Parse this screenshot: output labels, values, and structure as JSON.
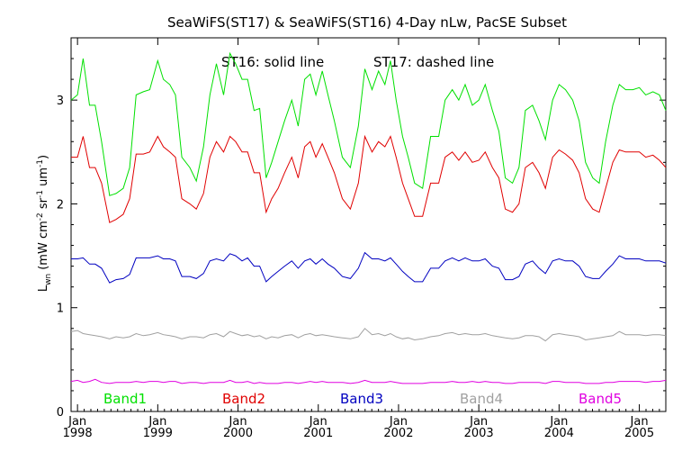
{
  "chart_data": {
    "type": "line",
    "title": "SeaWiFS(ST17) & SeaWiFS(ST16) 4-Day nLw, PacSE Subset",
    "annotation_solid": "ST16: solid line",
    "annotation_dashed": "ST17: dashed line",
    "ylabel": {
      "main": "L",
      "sub": "wn",
      "units_prefix": "(mW cm",
      "exp1": "-2",
      "units_mid1": " sr",
      "exp2": "-1",
      "units_mid2": " um",
      "exp3": "-1",
      "units_suffix": ")"
    },
    "ylim": [
      0,
      3.6
    ],
    "yticks": [
      0,
      1,
      2,
      3
    ],
    "xlim": [
      1997.92,
      2005.33
    ],
    "xticks": [
      {
        "value": 1998,
        "month": "Jan",
        "year": "1998"
      },
      {
        "value": 1999,
        "month": "Jan",
        "year": "1999"
      },
      {
        "value": 2000,
        "month": "Jan",
        "year": "2000"
      },
      {
        "value": 2001,
        "month": "Jan",
        "year": "2001"
      },
      {
        "value": 2002,
        "month": "Jan",
        "year": "2002"
      },
      {
        "value": 2003,
        "month": "Jan",
        "year": "2003"
      },
      {
        "value": 2004,
        "month": "Jan",
        "year": "2004"
      },
      {
        "value": 2005,
        "month": "Jan",
        "year": "2005"
      }
    ],
    "legend_placement": "bottom inside plot",
    "grid": false,
    "series": [
      {
        "name": "Band1",
        "color": "#00e000",
        "x": [
          1997.92,
          1998.0,
          1998.07,
          1998.15,
          1998.22,
          1998.3,
          1998.4,
          1998.48,
          1998.57,
          1998.65,
          1998.73,
          1998.82,
          1998.9,
          1999.0,
          1999.07,
          1999.15,
          1999.22,
          1999.3,
          1999.4,
          1999.48,
          1999.57,
          1999.65,
          1999.73,
          1999.82,
          1999.9,
          1999.97,
          2000.05,
          2000.12,
          2000.2,
          2000.27,
          2000.35,
          2000.42,
          2000.5,
          2000.58,
          2000.67,
          2000.75,
          2000.83,
          2000.9,
          2000.97,
          2001.05,
          2001.12,
          2001.2,
          2001.3,
          2001.4,
          2001.5,
          2001.58,
          2001.67,
          2001.75,
          2001.83,
          2001.9,
          2001.97,
          2002.05,
          2002.12,
          2002.2,
          2002.3,
          2002.4,
          2002.5,
          2002.58,
          2002.67,
          2002.75,
          2002.83,
          2002.92,
          2003.0,
          2003.08,
          2003.17,
          2003.25,
          2003.33,
          2003.42,
          2003.5,
          2003.58,
          2003.67,
          2003.75,
          2003.83,
          2003.92,
          2004.0,
          2004.08,
          2004.17,
          2004.25,
          2004.33,
          2004.42,
          2004.5,
          2004.58,
          2004.67,
          2004.75,
          2004.83,
          2004.92,
          2005.0,
          2005.08,
          2005.17,
          2005.25,
          2005.33
        ],
        "values": [
          3.0,
          3.05,
          3.4,
          2.95,
          2.95,
          2.6,
          2.08,
          2.1,
          2.15,
          2.35,
          3.05,
          3.08,
          3.1,
          3.38,
          3.2,
          3.15,
          3.05,
          2.45,
          2.35,
          2.22,
          2.55,
          3.05,
          3.35,
          3.05,
          3.45,
          3.35,
          3.2,
          3.2,
          2.9,
          2.92,
          2.25,
          2.4,
          2.6,
          2.8,
          3.0,
          2.75,
          3.2,
          3.25,
          3.05,
          3.28,
          3.05,
          2.8,
          2.45,
          2.35,
          2.75,
          3.3,
          3.1,
          3.28,
          3.15,
          3.38,
          3.0,
          2.65,
          2.45,
          2.2,
          2.15,
          2.65,
          2.65,
          3.0,
          3.1,
          3.0,
          3.15,
          2.95,
          3.0,
          3.15,
          2.9,
          2.7,
          2.25,
          2.2,
          2.35,
          2.9,
          2.95,
          2.8,
          2.62,
          3.0,
          3.15,
          3.1,
          3.0,
          2.8,
          2.4,
          2.25,
          2.2,
          2.6,
          2.95,
          3.15,
          3.1,
          3.1,
          3.12,
          3.05,
          3.08,
          3.05,
          2.9
        ]
      },
      {
        "name": "Band2",
        "color": "#e00000",
        "x": [
          1997.92,
          1998.0,
          1998.07,
          1998.15,
          1998.22,
          1998.3,
          1998.4,
          1998.48,
          1998.57,
          1998.65,
          1998.73,
          1998.82,
          1998.9,
          1999.0,
          1999.07,
          1999.15,
          1999.22,
          1999.3,
          1999.4,
          1999.48,
          1999.57,
          1999.65,
          1999.73,
          1999.82,
          1999.9,
          1999.97,
          2000.05,
          2000.12,
          2000.2,
          2000.27,
          2000.35,
          2000.42,
          2000.5,
          2000.58,
          2000.67,
          2000.75,
          2000.83,
          2000.9,
          2000.97,
          2001.05,
          2001.12,
          2001.2,
          2001.3,
          2001.4,
          2001.5,
          2001.58,
          2001.67,
          2001.75,
          2001.83,
          2001.9,
          2001.97,
          2002.05,
          2002.12,
          2002.2,
          2002.3,
          2002.4,
          2002.5,
          2002.58,
          2002.67,
          2002.75,
          2002.83,
          2002.92,
          2003.0,
          2003.08,
          2003.17,
          2003.25,
          2003.33,
          2003.42,
          2003.5,
          2003.58,
          2003.67,
          2003.75,
          2003.83,
          2003.92,
          2004.0,
          2004.08,
          2004.17,
          2004.25,
          2004.33,
          2004.42,
          2004.5,
          2004.58,
          2004.67,
          2004.75,
          2004.83,
          2004.92,
          2005.0,
          2005.08,
          2005.17,
          2005.25,
          2005.33
        ],
        "values": [
          2.45,
          2.45,
          2.65,
          2.35,
          2.35,
          2.2,
          1.82,
          1.85,
          1.9,
          2.05,
          2.48,
          2.48,
          2.5,
          2.65,
          2.55,
          2.5,
          2.45,
          2.05,
          2.0,
          1.95,
          2.1,
          2.45,
          2.6,
          2.5,
          2.65,
          2.6,
          2.5,
          2.5,
          2.3,
          2.3,
          1.92,
          2.05,
          2.15,
          2.3,
          2.45,
          2.25,
          2.55,
          2.6,
          2.45,
          2.58,
          2.45,
          2.3,
          2.05,
          1.95,
          2.2,
          2.65,
          2.5,
          2.6,
          2.55,
          2.65,
          2.45,
          2.2,
          2.05,
          1.88,
          1.88,
          2.2,
          2.2,
          2.45,
          2.5,
          2.42,
          2.5,
          2.4,
          2.42,
          2.5,
          2.35,
          2.25,
          1.95,
          1.92,
          2.0,
          2.35,
          2.4,
          2.3,
          2.15,
          2.45,
          2.52,
          2.48,
          2.42,
          2.3,
          2.05,
          1.95,
          1.92,
          2.15,
          2.4,
          2.52,
          2.5,
          2.5,
          2.5,
          2.45,
          2.47,
          2.42,
          2.35
        ]
      },
      {
        "name": "Band3",
        "color": "#0000c0",
        "x": [
          1997.92,
          1998.0,
          1998.07,
          1998.15,
          1998.22,
          1998.3,
          1998.4,
          1998.48,
          1998.57,
          1998.65,
          1998.73,
          1998.82,
          1998.9,
          1999.0,
          1999.07,
          1999.15,
          1999.22,
          1999.3,
          1999.4,
          1999.48,
          1999.57,
          1999.65,
          1999.73,
          1999.82,
          1999.9,
          1999.97,
          2000.05,
          2000.12,
          2000.2,
          2000.27,
          2000.35,
          2000.42,
          2000.5,
          2000.58,
          2000.67,
          2000.75,
          2000.83,
          2000.9,
          2000.97,
          2001.05,
          2001.12,
          2001.2,
          2001.3,
          2001.4,
          2001.5,
          2001.58,
          2001.67,
          2001.75,
          2001.83,
          2001.9,
          2001.97,
          2002.05,
          2002.12,
          2002.2,
          2002.3,
          2002.4,
          2002.5,
          2002.58,
          2002.67,
          2002.75,
          2002.83,
          2002.92,
          2003.0,
          2003.08,
          2003.17,
          2003.25,
          2003.33,
          2003.42,
          2003.5,
          2003.58,
          2003.67,
          2003.75,
          2003.83,
          2003.92,
          2004.0,
          2004.08,
          2004.17,
          2004.25,
          2004.33,
          2004.42,
          2004.5,
          2004.58,
          2004.67,
          2004.75,
          2004.83,
          2004.92,
          2005.0,
          2005.08,
          2005.17,
          2005.25,
          2005.33
        ],
        "values": [
          1.47,
          1.47,
          1.48,
          1.42,
          1.42,
          1.38,
          1.24,
          1.27,
          1.28,
          1.32,
          1.48,
          1.48,
          1.48,
          1.5,
          1.47,
          1.47,
          1.45,
          1.3,
          1.3,
          1.28,
          1.33,
          1.45,
          1.47,
          1.45,
          1.52,
          1.5,
          1.45,
          1.48,
          1.4,
          1.4,
          1.25,
          1.3,
          1.35,
          1.4,
          1.45,
          1.38,
          1.45,
          1.47,
          1.42,
          1.47,
          1.42,
          1.38,
          1.3,
          1.28,
          1.38,
          1.53,
          1.47,
          1.47,
          1.45,
          1.48,
          1.42,
          1.35,
          1.3,
          1.25,
          1.25,
          1.38,
          1.38,
          1.45,
          1.48,
          1.45,
          1.48,
          1.45,
          1.45,
          1.47,
          1.4,
          1.38,
          1.27,
          1.27,
          1.3,
          1.42,
          1.45,
          1.38,
          1.33,
          1.45,
          1.47,
          1.45,
          1.45,
          1.4,
          1.3,
          1.28,
          1.28,
          1.35,
          1.42,
          1.5,
          1.47,
          1.47,
          1.47,
          1.45,
          1.45,
          1.45,
          1.43
        ]
      },
      {
        "name": "Band4",
        "color": "#a0a0a0",
        "x": [
          1997.92,
          1998.0,
          1998.07,
          1998.15,
          1998.22,
          1998.3,
          1998.4,
          1998.48,
          1998.57,
          1998.65,
          1998.73,
          1998.82,
          1998.9,
          1999.0,
          1999.07,
          1999.15,
          1999.22,
          1999.3,
          1999.4,
          1999.48,
          1999.57,
          1999.65,
          1999.73,
          1999.82,
          1999.9,
          1999.97,
          2000.05,
          2000.12,
          2000.2,
          2000.27,
          2000.35,
          2000.42,
          2000.5,
          2000.58,
          2000.67,
          2000.75,
          2000.83,
          2000.9,
          2000.97,
          2001.05,
          2001.12,
          2001.2,
          2001.3,
          2001.4,
          2001.5,
          2001.58,
          2001.67,
          2001.75,
          2001.83,
          2001.9,
          2001.97,
          2002.05,
          2002.12,
          2002.2,
          2002.3,
          2002.4,
          2002.5,
          2002.58,
          2002.67,
          2002.75,
          2002.83,
          2002.92,
          2003.0,
          2003.08,
          2003.17,
          2003.25,
          2003.33,
          2003.42,
          2003.5,
          2003.58,
          2003.67,
          2003.75,
          2003.83,
          2003.92,
          2004.0,
          2004.08,
          2004.17,
          2004.25,
          2004.33,
          2004.42,
          2004.5,
          2004.58,
          2004.67,
          2004.75,
          2004.83,
          2004.92,
          2005.0,
          2005.08,
          2005.17,
          2005.25,
          2005.33
        ],
        "values": [
          0.77,
          0.78,
          0.75,
          0.74,
          0.73,
          0.72,
          0.7,
          0.72,
          0.71,
          0.72,
          0.75,
          0.73,
          0.74,
          0.76,
          0.74,
          0.73,
          0.72,
          0.7,
          0.72,
          0.72,
          0.71,
          0.74,
          0.75,
          0.72,
          0.77,
          0.75,
          0.73,
          0.74,
          0.72,
          0.73,
          0.7,
          0.72,
          0.71,
          0.73,
          0.74,
          0.71,
          0.74,
          0.75,
          0.73,
          0.74,
          0.73,
          0.72,
          0.71,
          0.7,
          0.72,
          0.8,
          0.74,
          0.75,
          0.73,
          0.75,
          0.72,
          0.7,
          0.71,
          0.69,
          0.7,
          0.72,
          0.73,
          0.75,
          0.76,
          0.74,
          0.75,
          0.74,
          0.74,
          0.75,
          0.73,
          0.72,
          0.71,
          0.7,
          0.71,
          0.73,
          0.73,
          0.72,
          0.68,
          0.74,
          0.75,
          0.74,
          0.73,
          0.72,
          0.69,
          0.7,
          0.71,
          0.72,
          0.73,
          0.77,
          0.74,
          0.74,
          0.74,
          0.73,
          0.74,
          0.74,
          0.73
        ]
      },
      {
        "name": "Band5",
        "color": "#e000e0",
        "x": [
          1997.92,
          1998.0,
          1998.07,
          1998.15,
          1998.22,
          1998.3,
          1998.4,
          1998.48,
          1998.57,
          1998.65,
          1998.73,
          1998.82,
          1998.9,
          1999.0,
          1999.07,
          1999.15,
          1999.22,
          1999.3,
          1999.4,
          1999.48,
          1999.57,
          1999.65,
          1999.73,
          1999.82,
          1999.9,
          1999.97,
          2000.05,
          2000.12,
          2000.2,
          2000.27,
          2000.35,
          2000.42,
          2000.5,
          2000.58,
          2000.67,
          2000.75,
          2000.83,
          2000.9,
          2000.97,
          2001.05,
          2001.12,
          2001.2,
          2001.3,
          2001.4,
          2001.5,
          2001.58,
          2001.67,
          2001.75,
          2001.83,
          2001.9,
          2001.97,
          2002.05,
          2002.12,
          2002.2,
          2002.3,
          2002.4,
          2002.5,
          2002.58,
          2002.67,
          2002.75,
          2002.83,
          2002.92,
          2003.0,
          2003.08,
          2003.17,
          2003.25,
          2003.33,
          2003.42,
          2003.5,
          2003.58,
          2003.67,
          2003.75,
          2003.83,
          2003.92,
          2004.0,
          2004.08,
          2004.17,
          2004.25,
          2004.33,
          2004.42,
          2004.5,
          2004.58,
          2004.67,
          2004.75,
          2004.83,
          2004.92,
          2005.0,
          2005.08,
          2005.17,
          2005.25,
          2005.33
        ],
        "values": [
          0.29,
          0.3,
          0.28,
          0.29,
          0.31,
          0.28,
          0.27,
          0.28,
          0.28,
          0.28,
          0.29,
          0.28,
          0.29,
          0.29,
          0.28,
          0.29,
          0.29,
          0.27,
          0.28,
          0.28,
          0.27,
          0.28,
          0.28,
          0.28,
          0.3,
          0.28,
          0.28,
          0.29,
          0.27,
          0.28,
          0.27,
          0.27,
          0.27,
          0.28,
          0.28,
          0.27,
          0.28,
          0.29,
          0.28,
          0.29,
          0.28,
          0.28,
          0.28,
          0.27,
          0.28,
          0.3,
          0.28,
          0.28,
          0.28,
          0.29,
          0.28,
          0.27,
          0.27,
          0.27,
          0.27,
          0.28,
          0.28,
          0.28,
          0.29,
          0.28,
          0.28,
          0.29,
          0.28,
          0.29,
          0.28,
          0.28,
          0.27,
          0.27,
          0.28,
          0.28,
          0.28,
          0.28,
          0.27,
          0.29,
          0.29,
          0.28,
          0.28,
          0.28,
          0.27,
          0.27,
          0.27,
          0.28,
          0.28,
          0.29,
          0.29,
          0.29,
          0.29,
          0.28,
          0.29,
          0.29,
          0.3
        ]
      }
    ]
  }
}
